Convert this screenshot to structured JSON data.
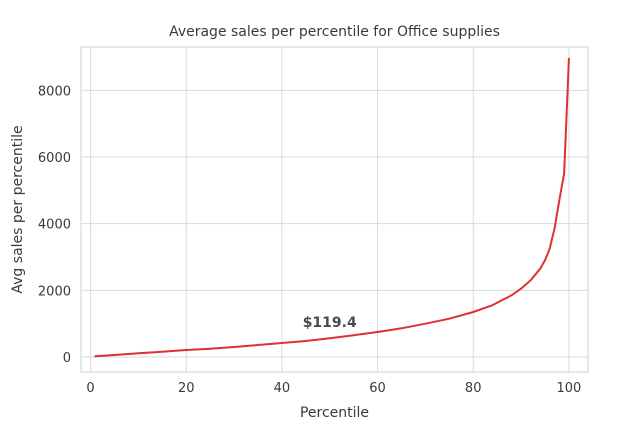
{
  "chart_data": {
    "type": "line",
    "title": "Average sales per percentile for Office supplies",
    "xlabel": "Percentile",
    "ylabel": "Avg sales per percentile",
    "xlim": [
      -2,
      104
    ],
    "ylim": [
      -450,
      9300
    ],
    "xticks": [
      0,
      20,
      40,
      60,
      80,
      100
    ],
    "yticks": [
      0,
      2000,
      4000,
      6000,
      8000
    ],
    "xtick_labels": [
      "0",
      "20",
      "40",
      "60",
      "80",
      "100"
    ],
    "ytick_labels": [
      "0",
      "2000",
      "4000",
      "6000",
      "8000"
    ],
    "grid": true,
    "line_color": "#e03030",
    "series": [
      {
        "x": [
          1,
          5,
          10,
          15,
          20,
          25,
          30,
          35,
          40,
          45,
          50,
          55,
          60,
          65,
          70,
          75,
          80,
          84,
          86,
          88,
          90,
          92,
          94,
          95,
          96,
          97,
          98,
          99,
          99.5,
          100
        ],
        "values": [
          20,
          60,
          110,
          160,
          210,
          250,
          300,
          360,
          420,
          480,
          560,
          650,
          750,
          860,
          1000,
          1150,
          1350,
          1550,
          1700,
          1850,
          2050,
          2300,
          2650,
          2900,
          3250,
          3850,
          4700,
          5500,
          7200,
          8950
        ]
      }
    ],
    "annotations": [
      {
        "text": "$119.4",
        "x": 50,
        "y": 900
      }
    ]
  }
}
